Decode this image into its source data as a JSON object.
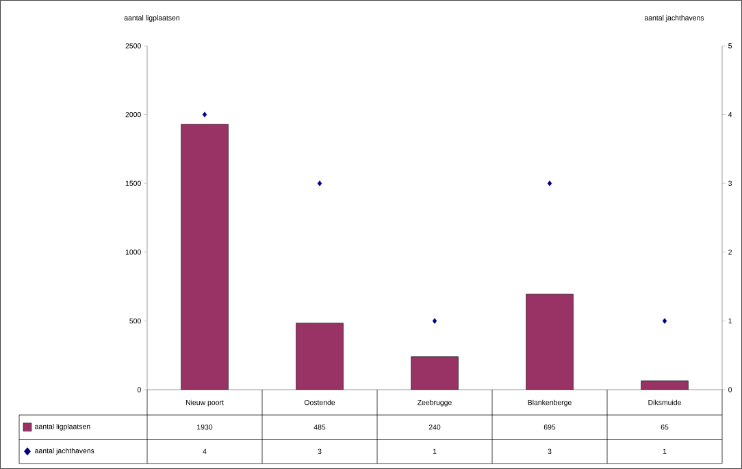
{
  "chart_data": {
    "type": "bar",
    "ylabel": "aantal ligplaatsen",
    "y2label": "aantal jachthavens",
    "categories": [
      "Nieuw poort",
      "Oostende",
      "Zeebrugge",
      "Blankenberge",
      "Diksmuide"
    ],
    "series": [
      {
        "name": "aantal ligplaatsen",
        "color": "#993366",
        "values": [
          1930,
          485,
          240,
          695,
          65
        ]
      },
      {
        "name": "aantal jachthavens",
        "type": "scatter",
        "axis": "y2",
        "marker": "diamond",
        "color": "#000080",
        "values": [
          4,
          3,
          1,
          3,
          1
        ]
      }
    ],
    "ylim": [
      0,
      2500
    ],
    "yticks": [
      0,
      500,
      1000,
      1500,
      2000,
      2500
    ],
    "y2lim": [
      0,
      5
    ],
    "y2ticks": [
      0,
      1,
      2,
      3,
      4,
      5
    ],
    "data_labels": true,
    "legend": "bottom",
    "grid": false
  }
}
